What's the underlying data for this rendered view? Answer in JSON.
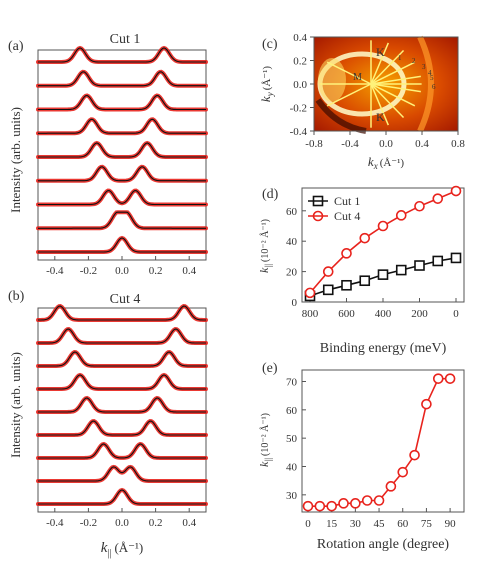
{
  "panels": {
    "a": {
      "label": "(a)",
      "title": "Cut 1",
      "ylabel": "Intensity (arb. units)",
      "xticks": [
        "-0.4",
        "-0.2",
        "0.0",
        "0.2",
        "0.4"
      ],
      "xlim": [
        -0.5,
        0.5
      ]
    },
    "b": {
      "label": "(b)",
      "title": "Cut 4",
      "ylabel": "Intensity (arb. units)",
      "xticks": [
        "-0.4",
        "-0.2",
        "0.0",
        "0.2",
        "0.4"
      ],
      "xlabel_main": "k",
      "xlabel_sub": "||",
      "xlabel_unit": "(Å⁻¹)",
      "xlim": [
        -0.5,
        0.5
      ]
    },
    "c": {
      "label": "(c)",
      "ylabel_main": "k",
      "ylabel_sub": "y",
      "ylabel_unit": "(Å⁻¹)",
      "xlabel_main": "k",
      "xlabel_sub": "x",
      "xlabel_unit": "(Å⁻¹)",
      "xticks": [
        "-0.8",
        "-0.4",
        "0.0",
        "0.4",
        "0.8"
      ],
      "yticks": [
        "0.4",
        "0.2",
        "0.0",
        "-0.2",
        "-0.4"
      ],
      "xlim": [
        -0.8,
        0.8
      ],
      "ylim": [
        -0.4,
        0.4
      ],
      "point_labels": [
        "K",
        "K",
        "M"
      ],
      "cut_numbers": [
        "1",
        "2",
        "3",
        "4",
        "5",
        "6"
      ]
    },
    "d": {
      "label": "(d)",
      "xlabel": "Binding energy (meV)",
      "ylabel_main": "k",
      "ylabel_sub": "||",
      "ylabel_unit": "(10⁻² Å⁻¹)",
      "xticks": [
        "800",
        "600",
        "400",
        "200",
        "0"
      ],
      "yticks": [
        "0",
        "20",
        "40",
        "60"
      ],
      "legend": [
        "Cut 1",
        "Cut 4"
      ]
    },
    "e": {
      "label": "(e)",
      "xlabel": "Rotation angle (degree)",
      "ylabel_main": "k",
      "ylabel_sub": "||",
      "ylabel_unit": "(10⁻² Å⁻¹)",
      "xticks": [
        "0",
        "15",
        "30",
        "45",
        "60",
        "75",
        "90"
      ],
      "yticks": [
        "30",
        "40",
        "50",
        "60",
        "70"
      ]
    }
  },
  "colors": {
    "red": "#e8231d",
    "black": "#111111",
    "frame": "#555555"
  },
  "chart_data": [
    {
      "panel": "a",
      "type": "line",
      "title": "Cut 1",
      "xlim": [
        -0.5,
        0.5
      ],
      "description": "stacked MDC curves, two symmetric peaks per curve",
      "series": [
        {
          "peaks": [
            -0.25,
            0.25
          ]
        },
        {
          "peaks": [
            -0.23,
            0.23
          ]
        },
        {
          "peaks": [
            -0.21,
            0.21
          ]
        },
        {
          "peaks": [
            -0.18,
            0.18
          ]
        },
        {
          "peaks": [
            -0.15,
            0.15
          ]
        },
        {
          "peaks": [
            -0.12,
            0.12
          ]
        },
        {
          "peaks": [
            -0.08,
            0.08
          ]
        },
        {
          "peaks": [
            -0.03,
            0.03
          ]
        },
        {
          "peaks": [
            0.0
          ]
        }
      ]
    },
    {
      "panel": "b",
      "type": "line",
      "title": "Cut 4",
      "xlim": [
        -0.5,
        0.5
      ],
      "series": [
        {
          "peaks": [
            -0.37,
            0.37
          ]
        },
        {
          "peaks": [
            -0.32,
            0.32
          ]
        },
        {
          "peaks": [
            -0.28,
            0.28
          ]
        },
        {
          "peaks": [
            -0.25,
            0.25
          ]
        },
        {
          "peaks": [
            -0.21,
            0.21
          ]
        },
        {
          "peaks": [
            -0.17,
            0.17
          ]
        },
        {
          "peaks": [
            -0.11,
            0.11
          ]
        },
        {
          "peaks": [
            -0.05,
            0.05
          ]
        },
        {
          "peaks": [
            0.0
          ]
        }
      ]
    },
    {
      "panel": "d",
      "type": "line",
      "xlim": [
        800,
        0
      ],
      "ylim": [
        0,
        75
      ],
      "series": [
        {
          "name": "Cut 1",
          "x": [
            800,
            700,
            600,
            500,
            400,
            300,
            200,
            100,
            0
          ],
          "values": [
            4,
            8,
            11,
            14,
            18,
            21,
            24,
            27,
            29
          ]
        },
        {
          "name": "Cut 4",
          "x": [
            800,
            700,
            600,
            500,
            400,
            300,
            200,
            100,
            0
          ],
          "values": [
            6,
            20,
            32,
            42,
            50,
            57,
            63,
            68,
            73
          ]
        }
      ]
    },
    {
      "panel": "e",
      "type": "line",
      "xlim": [
        0,
        95
      ],
      "ylim": [
        25,
        73
      ],
      "series": [
        {
          "x": [
            0,
            7.5,
            15,
            22.5,
            30,
            37.5,
            45,
            52.5,
            60,
            67.5,
            75,
            82.5,
            90
          ],
          "values": [
            26,
            26,
            26,
            27,
            27,
            28,
            28,
            33,
            38,
            44,
            62,
            71,
            71
          ]
        }
      ]
    }
  ]
}
